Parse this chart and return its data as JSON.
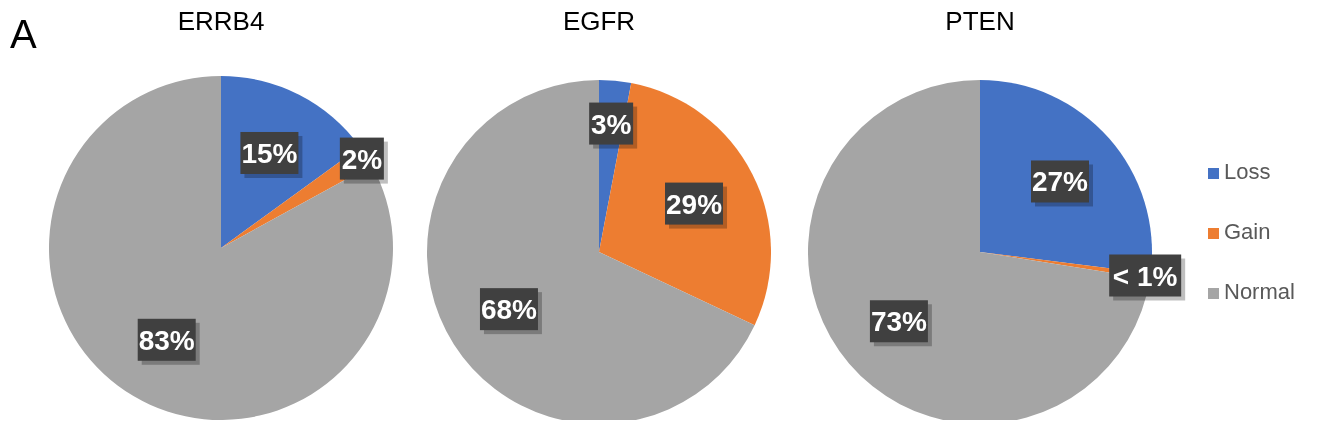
{
  "chart_data": [
    {
      "type": "pie",
      "title": "ERRB4",
      "annotations": [
        "A"
      ],
      "categories": [
        null,
        null,
        null
      ],
      "values": [
        15,
        2,
        83
      ],
      "value_labels": [
        "15%",
        "2%",
        "83%"
      ],
      "colors": [
        "#4472c4",
        "#ed7d31",
        "#a5a5a5"
      ]
    },
    {
      "type": "pie",
      "title": "EGFR",
      "categories": [
        null,
        null,
        null
      ],
      "values": [
        3,
        29,
        68
      ],
      "value_labels": [
        "3%",
        "29%",
        "68%"
      ],
      "colors": [
        "#4472c4",
        "#ed7d31",
        "#a5a5a5"
      ]
    },
    {
      "type": "pie",
      "title": "PTEN",
      "categories": [
        "Loss",
        "Gain",
        "Normal"
      ],
      "values": [
        27,
        0.5,
        72.5
      ],
      "value_labels": [
        "27%",
        "< 1%",
        "73%"
      ],
      "colors": [
        "#4472c4",
        "#ed7d31",
        "#a5a5a5"
      ],
      "legend": "right"
    }
  ]
}
